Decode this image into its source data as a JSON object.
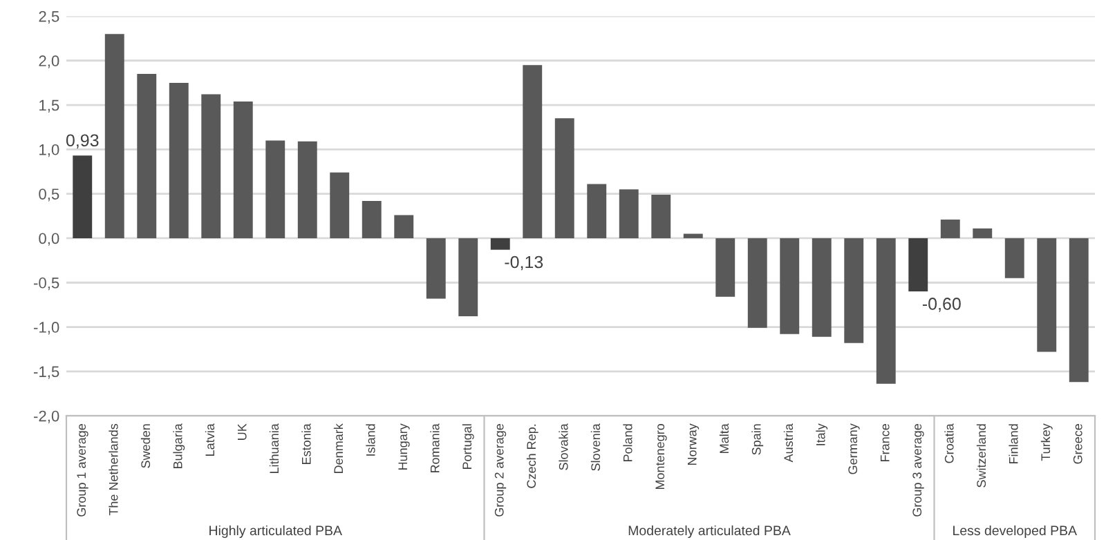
{
  "chart_data": {
    "type": "bar",
    "categories": [
      "Group 1 average",
      "The Netherlands",
      "Sweden",
      "Bulgaria",
      "Latvia",
      "UK",
      "Lithuania",
      "Estonia",
      "Denmark",
      "Island",
      "Hungary",
      "Romania",
      "Portugal",
      "Group 2 average",
      "Czech Rep.",
      "Slovakia",
      "Slovenia",
      "Poland",
      "Montenegro",
      "Norway",
      "Malta",
      "Spain",
      "Austria",
      "Italy",
      "Germany",
      "France",
      "Group 3 average",
      "Croatia",
      "Switzerland",
      "Finland",
      "Turkey",
      "Greece"
    ],
    "values": [
      0.93,
      2.3,
      1.85,
      1.75,
      1.62,
      1.54,
      1.1,
      1.09,
      0.74,
      0.42,
      0.26,
      -0.68,
      -0.88,
      -0.13,
      1.95,
      1.35,
      0.61,
      0.55,
      0.49,
      0.05,
      -0.66,
      -1.01,
      -1.08,
      -1.11,
      -1.18,
      -1.64,
      -0.6,
      0.21,
      0.11,
      -0.45,
      -1.28,
      -1.62
    ],
    "colors": [
      "#3f3f3f",
      "#595959",
      "#595959",
      "#595959",
      "#595959",
      "#595959",
      "#595959",
      "#595959",
      "#595959",
      "#595959",
      "#595959",
      "#595959",
      "#595959",
      "#3f3f3f",
      "#595959",
      "#595959",
      "#595959",
      "#595959",
      "#595959",
      "#595959",
      "#595959",
      "#595959",
      "#595959",
      "#595959",
      "#595959",
      "#595959",
      "#3f3f3f",
      "#595959",
      "#595959",
      "#595959",
      "#595959",
      "#595959"
    ],
    "value_labels": [
      "0,93",
      null,
      null,
      null,
      null,
      null,
      null,
      null,
      null,
      null,
      null,
      null,
      null,
      "-0,13",
      null,
      null,
      null,
      null,
      null,
      null,
      null,
      null,
      null,
      null,
      null,
      null,
      "-0,60",
      null,
      null,
      null,
      null,
      null
    ],
    "ylim": [
      -2.0,
      2.5
    ],
    "yticks": [
      {
        "value": -2.0,
        "label": "-2,0"
      },
      {
        "value": -1.5,
        "label": "-1,5"
      },
      {
        "value": -1.0,
        "label": "-1,0"
      },
      {
        "value": -0.5,
        "label": "-0,5"
      },
      {
        "value": 0.0,
        "label": "0,0"
      },
      {
        "value": 0.5,
        "label": "0,5"
      },
      {
        "value": 1.0,
        "label": "1,0"
      },
      {
        "value": 1.5,
        "label": "1,5"
      },
      {
        "value": 2.0,
        "label": "2,0"
      },
      {
        "value": 2.5,
        "label": "2,5"
      }
    ],
    "grid": "y",
    "annotations": [
      "Highly articulated PBA",
      "Moderately articulated PBA",
      "Less developed PBA"
    ]
  }
}
